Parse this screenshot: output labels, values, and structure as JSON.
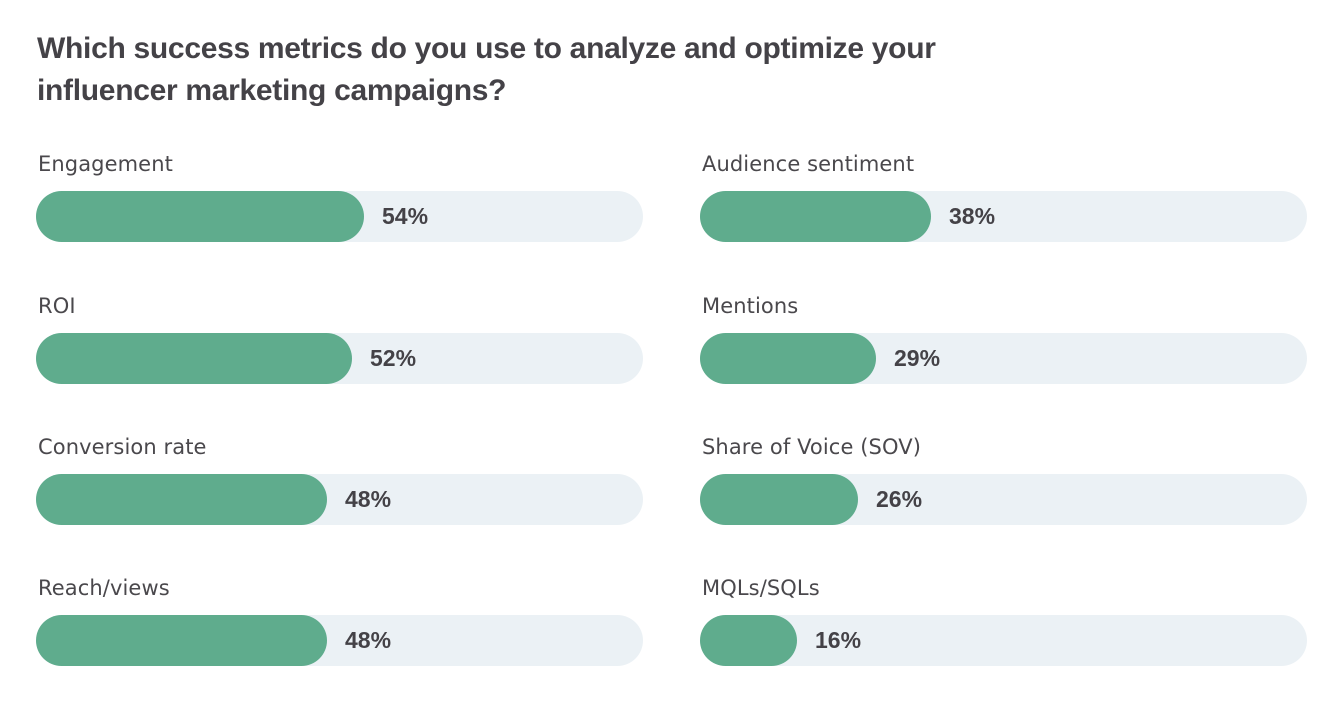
{
  "chart_data": {
    "type": "bar",
    "orientation": "horizontal",
    "title": "Which success metrics do you use to analyze and optimize your influencer marketing campaigns?",
    "xlabel": "",
    "ylabel": "",
    "value_unit": "%",
    "xlim": [
      0,
      100
    ],
    "grid": false,
    "legend": "none",
    "colors": {
      "fill": "#5fac8d",
      "track": "#ebf1f5",
      "text": "#444247"
    },
    "categories": [
      "Engagement",
      "ROI",
      "Conversion rate",
      "Reach/views",
      "Audience sentiment",
      "Mentions",
      "Share of Voice (SOV)",
      "MQLs/SQLs"
    ],
    "values": [
      54,
      52,
      48,
      48,
      38,
      29,
      26,
      16
    ],
    "labels": [
      "54%",
      "52%",
      "48%",
      "48%",
      "38%",
      "29%",
      "26%",
      "16%"
    ],
    "columns": [
      [
        "Engagement",
        "ROI",
        "Conversion rate",
        "Reach/views"
      ],
      [
        "Audience sentiment",
        "Mentions",
        "Share of Voice (SOV)",
        "MQLs/SQLs"
      ]
    ]
  }
}
